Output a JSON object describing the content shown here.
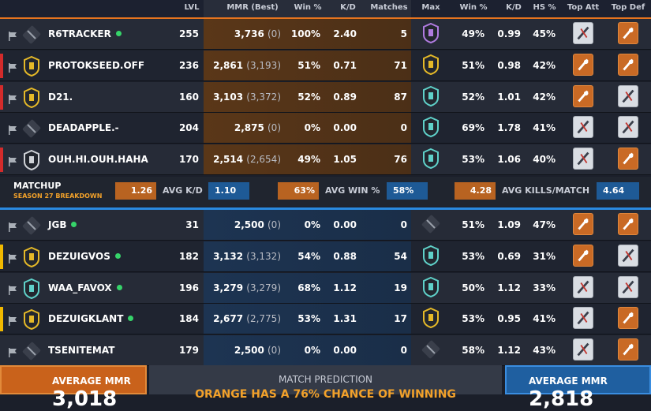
{
  "header": {
    "lvl": "LVL",
    "mmr": "MMR (Best)",
    "win": "Win %",
    "kd": "K/D",
    "matches": "Matches",
    "max": "Max",
    "win2": "Win %",
    "kd2": "K/D",
    "hs": "HS %",
    "top_att": "Top Att",
    "top_def": "Top Def"
  },
  "orange_team": [
    {
      "name": "R6TRACKER",
      "online": true,
      "lvl": "255",
      "mmr": "3,736",
      "best": "(0)",
      "win": "100%",
      "kd": "2.40",
      "matches": "5",
      "win2": "49%",
      "kd2": "0.99",
      "hs": "45%",
      "color_bar": ""
    },
    {
      "name": "PROTOKSEED.OFF",
      "online": false,
      "lvl": "236",
      "mmr": "2,861",
      "best": "(3,193)",
      "win": "51%",
      "kd": "0.71",
      "matches": "71",
      "win2": "51%",
      "kd2": "0.98",
      "hs": "42%",
      "color_bar": "red"
    },
    {
      "name": "D21.",
      "online": false,
      "lvl": "160",
      "mmr": "3,103",
      "best": "(3,372)",
      "win": "52%",
      "kd": "0.89",
      "matches": "87",
      "win2": "52%",
      "kd2": "1.01",
      "hs": "42%",
      "color_bar": "red"
    },
    {
      "name": "DEADAPPLE.-",
      "online": false,
      "lvl": "204",
      "mmr": "2,875",
      "best": "(0)",
      "win": "0%",
      "kd": "0.00",
      "matches": "0",
      "win2": "69%",
      "kd2": "1.78",
      "hs": "41%",
      "color_bar": ""
    },
    {
      "name": "OUH.HI.OUH.HAHA",
      "online": false,
      "lvl": "170",
      "mmr": "2,514",
      "best": "(2,654)",
      "win": "49%",
      "kd": "1.05",
      "matches": "76",
      "win2": "53%",
      "kd2": "1.06",
      "hs": "40%",
      "color_bar": "red"
    }
  ],
  "matchup": {
    "title": "MATCHUP",
    "subtitle": "SEASON 27 BREAKDOWN",
    "kd_orange": "1.26",
    "kd_label": "AVG K/D",
    "kd_blue": "1.10",
    "win_orange": "63%",
    "win_label": "AVG WIN %",
    "win_blue": "58%",
    "kills_orange": "4.28",
    "kills_label": "AVG KILLS/MATCH",
    "kills_blue": "4.64"
  },
  "blue_team": [
    {
      "name": "JGB",
      "online": true,
      "lvl": "31",
      "mmr": "2,500",
      "best": "(0)",
      "win": "0%",
      "kd": "0.00",
      "matches": "0",
      "win2": "51%",
      "kd2": "1.09",
      "hs": "47%",
      "color_bar": ""
    },
    {
      "name": "DEZUIGVOS",
      "online": true,
      "lvl": "182",
      "mmr": "3,132",
      "best": "(3,132)",
      "win": "54%",
      "kd": "0.88",
      "matches": "54",
      "win2": "53%",
      "kd2": "0.69",
      "hs": "31%",
      "color_bar": "yellow"
    },
    {
      "name": "WAA_FAVOX",
      "online": true,
      "lvl": "196",
      "mmr": "3,279",
      "best": "(3,279)",
      "win": "68%",
      "kd": "1.12",
      "matches": "19",
      "win2": "50%",
      "kd2": "1.12",
      "hs": "33%",
      "color_bar": ""
    },
    {
      "name": "DEZUIGKLANT",
      "online": true,
      "lvl": "184",
      "mmr": "2,677",
      "best": "(2,775)",
      "win": "53%",
      "kd": "1.31",
      "matches": "17",
      "win2": "53%",
      "kd2": "0.95",
      "hs": "41%",
      "color_bar": "yellow"
    },
    {
      "name": "TSENITEMAT",
      "online": false,
      "lvl": "179",
      "mmr": "2,500",
      "best": "(0)",
      "win": "0%",
      "kd": "0.00",
      "matches": "0",
      "win2": "58%",
      "kd2": "1.12",
      "hs": "43%",
      "color_bar": ""
    }
  ],
  "footer": {
    "left_label": "AVERAGE MMR",
    "left_value": "3,018",
    "center_label": "MATCH PREDICTION",
    "center_text": "ORANGE HAS A 76% CHANCE OF WINNING",
    "right_label": "AVERAGE MMR",
    "right_value": "2,818"
  },
  "colors": {
    "orange": "#e7741e",
    "blue": "#2a8ae0",
    "online": "#36d46a",
    "red_bar": "#d32b2b",
    "yellow_bar": "#f0b800"
  }
}
